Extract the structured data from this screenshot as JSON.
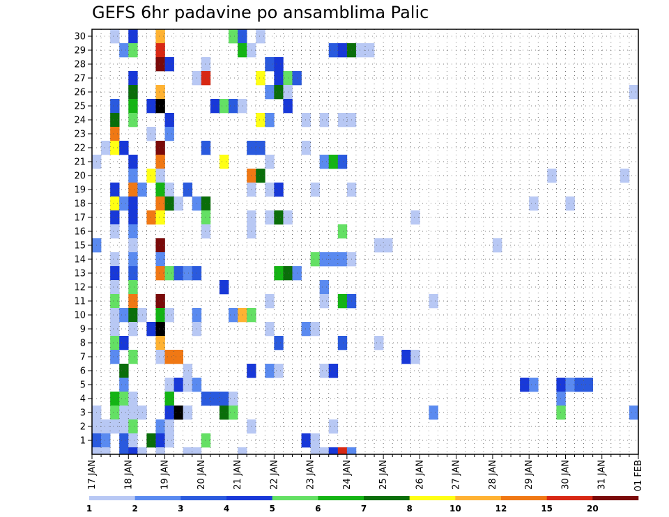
{
  "chart_data": {
    "type": "heatmap",
    "title": "GEFS 6hr padavine po ansamblima Palic",
    "xlabel": "",
    "ylabel": "",
    "x_ticks": [
      "17 JAN",
      "18 JAN",
      "19 JAN",
      "20 JAN",
      "21 JAN",
      "22 JAN",
      "23 JAN",
      "24 JAN",
      "25 JAN",
      "26 JAN",
      "27 JAN",
      "28 JAN",
      "29 JAN",
      "30 JAN",
      "31 JAN",
      "01 FEB"
    ],
    "y_ticks": [
      "1",
      "2",
      "3",
      "4",
      "5",
      "6",
      "7",
      "8",
      "9",
      "10",
      "11",
      "12",
      "13",
      "14",
      "15",
      "16",
      "17",
      "18",
      "19",
      "20",
      "21",
      "22",
      "23",
      "24",
      "25",
      "26",
      "27",
      "28",
      "29",
      "30"
    ],
    "x_unit": "days since 17 JAN 00Z, 6-hour steps",
    "xlim": [
      0,
      15
    ],
    "ylim": [
      0,
      30
    ],
    "grid": true,
    "colorbar": {
      "labels": [
        "1",
        "2",
        "3",
        "4",
        "5",
        "6",
        "7",
        "8",
        "10",
        "12",
        "15",
        "20"
      ],
      "colors": [
        "#b8c8f4",
        "#5a8af0",
        "#2a5ade",
        "#1838d8",
        "#64e064",
        "#14b414",
        "#0a6e0a",
        "#ffff14",
        "#ffb232",
        "#f07814",
        "#d82814",
        "#7a0a0a"
      ]
    },
    "cells": [
      [
        0.5,
        30,
        1
      ],
      [
        1.0,
        30,
        1
      ],
      [
        1.0,
        30,
        4
      ],
      [
        1.75,
        30,
        9
      ],
      [
        3.75,
        30,
        5
      ],
      [
        4.0,
        30,
        3
      ],
      [
        4.5,
        30,
        1
      ],
      [
        0.75,
        29,
        2
      ],
      [
        1.0,
        29,
        5
      ],
      [
        1.75,
        29,
        11
      ],
      [
        4.0,
        29,
        6
      ],
      [
        4.25,
        29,
        1
      ],
      [
        6.5,
        29,
        3
      ],
      [
        6.75,
        29,
        4
      ],
      [
        7.0,
        29,
        7
      ],
      [
        7.25,
        29,
        1
      ],
      [
        7.5,
        29,
        1
      ],
      [
        1.75,
        28,
        12
      ],
      [
        2.0,
        28,
        4
      ],
      [
        3.0,
        28,
        1
      ],
      [
        4.75,
        28,
        3
      ],
      [
        5.0,
        28,
        4
      ],
      [
        1.0,
        27,
        4
      ],
      [
        2.75,
        27,
        1
      ],
      [
        3.0,
        27,
        11
      ],
      [
        4.5,
        27,
        8
      ],
      [
        5.0,
        27,
        4
      ],
      [
        5.25,
        27,
        5
      ],
      [
        5.5,
        27,
        3
      ],
      [
        1.0,
        26,
        2
      ],
      [
        1.0,
        26,
        7
      ],
      [
        1.75,
        26,
        9
      ],
      [
        4.75,
        26,
        2
      ],
      [
        5.0,
        26,
        7
      ],
      [
        5.25,
        26,
        1
      ],
      [
        14.75,
        26,
        1
      ],
      [
        0.5,
        25,
        3
      ],
      [
        1.0,
        25,
        6
      ],
      [
        1.5,
        25,
        4
      ],
      [
        1.75,
        25,
        13
      ],
      [
        3.25,
        25,
        4
      ],
      [
        3.5,
        25,
        5
      ],
      [
        3.75,
        25,
        3
      ],
      [
        4.0,
        25,
        1
      ],
      [
        5.25,
        25,
        4
      ],
      [
        0.5,
        24,
        7
      ],
      [
        1.0,
        24,
        5
      ],
      [
        2.0,
        24,
        4
      ],
      [
        4.5,
        24,
        8
      ],
      [
        4.75,
        24,
        2
      ],
      [
        5.75,
        24,
        1
      ],
      [
        6.25,
        24,
        1
      ],
      [
        6.75,
        24,
        1
      ],
      [
        7.0,
        24,
        1
      ],
      [
        0.5,
        23,
        10
      ],
      [
        1.5,
        23,
        1
      ],
      [
        2.0,
        23,
        2
      ],
      [
        0.25,
        22,
        1
      ],
      [
        0.5,
        22,
        8
      ],
      [
        0.75,
        22,
        4
      ],
      [
        1.75,
        22,
        12
      ],
      [
        3.0,
        22,
        3
      ],
      [
        4.25,
        22,
        3
      ],
      [
        4.5,
        22,
        3
      ],
      [
        5.75,
        22,
        1
      ],
      [
        0.0,
        21,
        1
      ],
      [
        1.0,
        21,
        4
      ],
      [
        1.75,
        21,
        10
      ],
      [
        3.5,
        21,
        8
      ],
      [
        4.75,
        21,
        1
      ],
      [
        6.25,
        21,
        2
      ],
      [
        6.5,
        21,
        6
      ],
      [
        6.75,
        21,
        3
      ],
      [
        1.0,
        20,
        2
      ],
      [
        1.5,
        20,
        8
      ],
      [
        1.75,
        20,
        1
      ],
      [
        4.25,
        20,
        10
      ],
      [
        4.5,
        20,
        7
      ],
      [
        12.5,
        20,
        1
      ],
      [
        14.5,
        20,
        1
      ],
      [
        0.5,
        19,
        4
      ],
      [
        1.0,
        19,
        10
      ],
      [
        1.25,
        19,
        2
      ],
      [
        1.75,
        19,
        6
      ],
      [
        2.0,
        19,
        1
      ],
      [
        2.5,
        19,
        3
      ],
      [
        4.25,
        19,
        1
      ],
      [
        4.75,
        19,
        1
      ],
      [
        5.0,
        19,
        4
      ],
      [
        6.0,
        19,
        1
      ],
      [
        7.0,
        19,
        1
      ],
      [
        0.5,
        18,
        8
      ],
      [
        0.75,
        18,
        2
      ],
      [
        1.0,
        18,
        4
      ],
      [
        1.75,
        18,
        10
      ],
      [
        2.0,
        18,
        7
      ],
      [
        2.25,
        18,
        1
      ],
      [
        2.75,
        18,
        2
      ],
      [
        3.0,
        18,
        7
      ],
      [
        12.0,
        18,
        1
      ],
      [
        13.0,
        18,
        1
      ],
      [
        0.5,
        17,
        4
      ],
      [
        1.0,
        17,
        4
      ],
      [
        1.5,
        17,
        10
      ],
      [
        1.75,
        17,
        8
      ],
      [
        3.0,
        17,
        5
      ],
      [
        4.25,
        17,
        1
      ],
      [
        4.75,
        17,
        1
      ],
      [
        5.0,
        17,
        7
      ],
      [
        5.25,
        17,
        1
      ],
      [
        8.75,
        17,
        1
      ],
      [
        0.5,
        16,
        1
      ],
      [
        1.0,
        16,
        2
      ],
      [
        3.0,
        16,
        1
      ],
      [
        4.25,
        16,
        1
      ],
      [
        6.75,
        16,
        5
      ],
      [
        0.0,
        15,
        2
      ],
      [
        1.0,
        15,
        1
      ],
      [
        1.75,
        15,
        12
      ],
      [
        7.75,
        15,
        1
      ],
      [
        8.0,
        15,
        1
      ],
      [
        11.0,
        15,
        1
      ],
      [
        0.5,
        14,
        1
      ],
      [
        1.0,
        14,
        2
      ],
      [
        1.75,
        14,
        2
      ],
      [
        6.0,
        14,
        5
      ],
      [
        6.25,
        14,
        2
      ],
      [
        6.5,
        14,
        2
      ],
      [
        6.75,
        14,
        2
      ],
      [
        7.0,
        14,
        1
      ],
      [
        0.5,
        13,
        4
      ],
      [
        1.0,
        13,
        3
      ],
      [
        1.75,
        13,
        10
      ],
      [
        2.0,
        13,
        5
      ],
      [
        2.25,
        13,
        3
      ],
      [
        2.5,
        13,
        2
      ],
      [
        2.75,
        13,
        3
      ],
      [
        5.0,
        13,
        6
      ],
      [
        5.25,
        13,
        7
      ],
      [
        5.5,
        13,
        2
      ],
      [
        0.5,
        12,
        1
      ],
      [
        1.0,
        12,
        5
      ],
      [
        3.5,
        12,
        4
      ],
      [
        6.25,
        12,
        2
      ],
      [
        0.5,
        11,
        5
      ],
      [
        1.0,
        11,
        10
      ],
      [
        1.75,
        11,
        12
      ],
      [
        4.75,
        11,
        1
      ],
      [
        6.25,
        11,
        1
      ],
      [
        6.75,
        11,
        6
      ],
      [
        7.0,
        11,
        3
      ],
      [
        9.25,
        11,
        1
      ],
      [
        0.5,
        10,
        1
      ],
      [
        0.75,
        10,
        2
      ],
      [
        1.0,
        10,
        7
      ],
      [
        1.25,
        10,
        1
      ],
      [
        1.75,
        10,
        6
      ],
      [
        2.0,
        10,
        1
      ],
      [
        2.75,
        10,
        2
      ],
      [
        3.75,
        10,
        2
      ],
      [
        4.0,
        10,
        9
      ],
      [
        4.25,
        10,
        5
      ],
      [
        0.5,
        9,
        1
      ],
      [
        1.0,
        9,
        1
      ],
      [
        1.5,
        9,
        4
      ],
      [
        1.75,
        9,
        13
      ],
      [
        2.75,
        9,
        1
      ],
      [
        4.75,
        9,
        1
      ],
      [
        5.75,
        9,
        2
      ],
      [
        6.0,
        9,
        1
      ],
      [
        0.5,
        8,
        5
      ],
      [
        0.75,
        8,
        4
      ],
      [
        1.75,
        8,
        9
      ],
      [
        5.0,
        8,
        3
      ],
      [
        6.75,
        8,
        3
      ],
      [
        7.75,
        8,
        1
      ],
      [
        0.5,
        7,
        2
      ],
      [
        1.0,
        7,
        5
      ],
      [
        1.75,
        7,
        1
      ],
      [
        2.0,
        7,
        10
      ],
      [
        2.25,
        7,
        10
      ],
      [
        8.5,
        7,
        4
      ],
      [
        8.75,
        7,
        1
      ],
      [
        0.75,
        6,
        7
      ],
      [
        2.5,
        6,
        1
      ],
      [
        4.25,
        6,
        4
      ],
      [
        4.75,
        6,
        2
      ],
      [
        5.0,
        6,
        1
      ],
      [
        6.25,
        6,
        1
      ],
      [
        6.5,
        6,
        4
      ],
      [
        0.75,
        5,
        2
      ],
      [
        2.0,
        5,
        1
      ],
      [
        2.25,
        5,
        4
      ],
      [
        2.5,
        5,
        1
      ],
      [
        2.75,
        5,
        2
      ],
      [
        11.75,
        5,
        4
      ],
      [
        12.0,
        5,
        2
      ],
      [
        12.75,
        5,
        4
      ],
      [
        13.0,
        5,
        2
      ],
      [
        13.25,
        5,
        3
      ],
      [
        13.5,
        5,
        3
      ],
      [
        0.5,
        4,
        6
      ],
      [
        0.75,
        4,
        5
      ],
      [
        1.0,
        4,
        1
      ],
      [
        2.0,
        4,
        6
      ],
      [
        3.0,
        4,
        3
      ],
      [
        3.25,
        4,
        3
      ],
      [
        3.5,
        4,
        3
      ],
      [
        3.75,
        4,
        1
      ],
      [
        12.75,
        4,
        2
      ],
      [
        0.0,
        3,
        1
      ],
      [
        0.5,
        3,
        5
      ],
      [
        0.75,
        3,
        1
      ],
      [
        1.0,
        3,
        1
      ],
      [
        1.25,
        3,
        1
      ],
      [
        2.0,
        3,
        4
      ],
      [
        2.25,
        3,
        13
      ],
      [
        2.5,
        3,
        1
      ],
      [
        3.5,
        3,
        7
      ],
      [
        3.75,
        3,
        5
      ],
      [
        9.25,
        3,
        2
      ],
      [
        12.75,
        3,
        5
      ],
      [
        14.75,
        3,
        2
      ],
      [
        0.0,
        2,
        1
      ],
      [
        0.25,
        2,
        1
      ],
      [
        0.5,
        2,
        1
      ],
      [
        0.75,
        2,
        1
      ],
      [
        1.0,
        2,
        5
      ],
      [
        1.75,
        2,
        2
      ],
      [
        2.0,
        2,
        1
      ],
      [
        4.25,
        2,
        1
      ],
      [
        6.5,
        2,
        1
      ],
      [
        0.0,
        1,
        3
      ],
      [
        0.25,
        1,
        2
      ],
      [
        0.75,
        1,
        3
      ],
      [
        1.0,
        1,
        1
      ],
      [
        1.5,
        1,
        7
      ],
      [
        1.75,
        1,
        4
      ],
      [
        2.0,
        1,
        1
      ],
      [
        3.0,
        1,
        5
      ],
      [
        5.75,
        1,
        4
      ],
      [
        6.0,
        1,
        1
      ],
      [
        0.0,
        0,
        1
      ],
      [
        0.25,
        0,
        1
      ],
      [
        0.75,
        0,
        3
      ],
      [
        1.0,
        0,
        4
      ],
      [
        1.25,
        0,
        1
      ],
      [
        1.75,
        0,
        1
      ],
      [
        2.5,
        0,
        1
      ],
      [
        2.75,
        0,
        1
      ],
      [
        4.0,
        0,
        1
      ],
      [
        6.0,
        0,
        1
      ],
      [
        6.25,
        0,
        1
      ],
      [
        6.5,
        0,
        4
      ],
      [
        6.75,
        0,
        11
      ],
      [
        7.0,
        0,
        2
      ]
    ]
  }
}
